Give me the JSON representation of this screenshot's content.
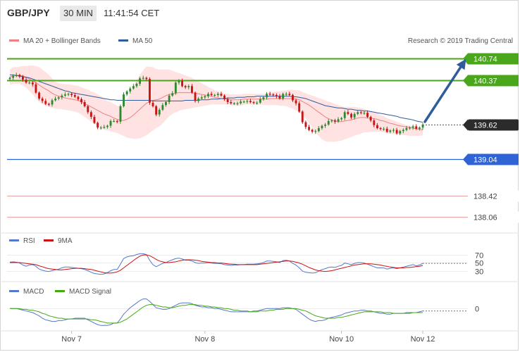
{
  "header": {
    "symbol": "GBP/JPY",
    "timeframe": "30 MIN",
    "time": "11:41:54 CET"
  },
  "legend": {
    "bollinger": "MA 20 + Bollinger Bands",
    "ma50": "MA 50",
    "credit": "Research © 2019 Trading Central",
    "rsi": "RSI",
    "rsi_ma": "9MA",
    "macd": "MACD",
    "macd_signal": "MACD Signal"
  },
  "colors": {
    "resistance": "#4aa61a",
    "support": "#2f63d6",
    "target_line": "#f0a0a0",
    "price_tag": "#2b2b2b",
    "bb_fill": "#ffd8d8",
    "ma20": "#f08080",
    "ma50": "#2f5c9c",
    "up_candle": "#2f8a2f",
    "down_candle": "#c81414",
    "rsi_line": "#5577cc",
    "rsi_ma_line": "#cc1111",
    "macd_line": "#5577cc",
    "macd_signal_line": "#44aa11",
    "arrow": "#2f5c9c"
  },
  "chart_data": [
    {
      "type": "candlestick",
      "title": "GBP/JPY",
      "x_ticks": [
        "Nov 7",
        "Nov 8",
        "Nov 10",
        "Nov 12"
      ],
      "ylim": [
        137.8,
        140.94
      ],
      "last_price": 139.62,
      "levels": [
        {
          "value": 140.74,
          "label": "140.74",
          "kind": "resistance"
        },
        {
          "value": 140.37,
          "label": "140.37",
          "kind": "resistance"
        },
        {
          "value": 139.62,
          "label": "139.62",
          "kind": "last"
        },
        {
          "value": 139.04,
          "label": "139.04",
          "kind": "support"
        },
        {
          "value": 138.42,
          "label": "138.42",
          "kind": "target"
        },
        {
          "value": 138.06,
          "label": "138.06",
          "kind": "target"
        }
      ],
      "projection": {
        "from": 139.62,
        "to": 140.74
      },
      "close": [
        140.41,
        140.44,
        140.46,
        140.43,
        140.38,
        140.33,
        140.33,
        140.3,
        140.16,
        140.06,
        140.02,
        139.97,
        139.96,
        140.03,
        140.06,
        140.08,
        140.11,
        140.13,
        140.14,
        140.12,
        140.09,
        140.05,
        140.0,
        139.93,
        139.83,
        139.75,
        139.65,
        139.57,
        139.57,
        139.58,
        139.6,
        139.68,
        139.68,
        139.67,
        139.93,
        140.13,
        140.18,
        140.23,
        140.27,
        140.31,
        140.4,
        140.41,
        140.39,
        139.99,
        139.93,
        139.79,
        139.87,
        139.95,
        140.0,
        140.11,
        140.15,
        140.33,
        140.36,
        140.27,
        140.25,
        140.27,
        140.16,
        140.02,
        140.06,
        140.08,
        140.1,
        140.14,
        140.12,
        140.12,
        140.14,
        140.11,
        140.05,
        140.0,
        139.98,
        139.98,
        139.98,
        140.01,
        140.01,
        140.02,
        140.0,
        139.99,
        139.99,
        140.05,
        140.08,
        140.14,
        140.13,
        140.12,
        140.1,
        140.06,
        140.14,
        140.14,
        140.12,
        140.03,
        139.98,
        139.84,
        139.66,
        139.58,
        139.53,
        139.5,
        139.51,
        139.56,
        139.6,
        139.62,
        139.68,
        139.69,
        139.67,
        139.71,
        139.73,
        139.83,
        139.8,
        139.74,
        139.8,
        139.83,
        139.82,
        139.82,
        139.75,
        139.69,
        139.61,
        139.56,
        139.55,
        139.55,
        139.5,
        139.52,
        139.53,
        139.47,
        139.51,
        139.53,
        139.56,
        139.57,
        139.59,
        139.55,
        139.57,
        139.62
      ],
      "ma20": [
        140.42,
        140.45,
        140.45,
        140.45,
        140.44,
        140.42,
        140.39,
        140.36,
        140.33,
        140.29,
        140.25,
        140.22,
        140.19,
        140.15,
        140.12,
        140.1,
        140.09,
        140.07,
        140.06,
        140.05,
        140.04,
        140.03,
        140.0,
        139.97,
        139.95,
        139.92,
        139.89,
        139.86,
        139.83,
        139.8,
        139.78,
        139.76,
        139.73,
        139.71,
        139.69,
        139.69,
        139.71,
        139.74,
        139.78,
        139.83,
        139.88,
        139.93,
        139.98,
        140.01,
        140.03,
        140.04,
        140.05,
        140.08,
        140.11,
        140.13,
        140.14,
        140.15,
        140.16,
        140.16,
        140.16,
        140.16,
        140.16,
        140.15,
        140.14,
        140.13,
        140.12,
        140.11,
        140.1,
        140.08,
        140.07,
        140.06,
        140.05,
        140.05,
        140.04,
        140.04,
        140.04,
        140.04,
        140.05,
        140.05,
        140.05,
        140.05,
        140.05,
        140.05,
        140.05,
        140.05,
        140.06,
        140.06,
        140.06,
        140.06,
        140.06,
        140.06,
        140.06,
        140.06,
        140.05,
        140.04,
        140.01,
        139.98,
        139.95,
        139.91,
        139.87,
        139.83,
        139.79,
        139.75,
        139.72,
        139.7,
        139.68,
        139.67,
        139.67,
        139.68,
        139.69,
        139.7,
        139.72,
        139.73,
        139.74,
        139.74,
        139.73,
        139.73,
        139.72,
        139.71,
        139.69,
        139.68,
        139.66,
        139.64,
        139.63,
        139.61,
        139.6,
        139.59,
        139.58,
        139.57,
        139.56,
        139.55,
        139.54,
        139.53
      ],
      "ma50": [
        140.46,
        140.46,
        140.45,
        140.44,
        140.43,
        140.42,
        140.41,
        140.39,
        140.37,
        140.35,
        140.33,
        140.31,
        140.29,
        140.27,
        140.25,
        140.23,
        140.21,
        140.19,
        140.18,
        140.16,
        140.15,
        140.14,
        140.13,
        140.12,
        140.11,
        140.1,
        140.09,
        140.08,
        140.07,
        140.06,
        140.05,
        140.04,
        140.04,
        140.03,
        140.03,
        140.03,
        140.03,
        140.03,
        140.03,
        140.03,
        140.03,
        140.03,
        140.03,
        140.03,
        140.02,
        140.02,
        140.02,
        140.02,
        140.02,
        140.02,
        140.02,
        140.02,
        140.02,
        140.02,
        140.03,
        140.03,
        140.03,
        140.03,
        140.03,
        140.04,
        140.04,
        140.04,
        140.05,
        140.05,
        140.05,
        140.06,
        140.06,
        140.07,
        140.07,
        140.07,
        140.08,
        140.08,
        140.08,
        140.09,
        140.09,
        140.09,
        140.1,
        140.1,
        140.1,
        140.1,
        140.1,
        140.1,
        140.1,
        140.1,
        140.1,
        140.1,
        140.1,
        140.09,
        140.09,
        140.08,
        140.07,
        140.06,
        140.04,
        140.02,
        140.0,
        139.98,
        139.96,
        139.94,
        139.93,
        139.92,
        139.91,
        139.9,
        139.9,
        139.89,
        139.88,
        139.88,
        139.87,
        139.86,
        139.86,
        139.85,
        139.85,
        139.84,
        139.83,
        139.82,
        139.81,
        139.8,
        139.79,
        139.78,
        139.77,
        139.76,
        139.74,
        139.73,
        139.72,
        139.71,
        139.7,
        139.68,
        139.67,
        139.66
      ],
      "bb_upper": [
        140.55,
        140.59,
        140.59,
        140.6,
        140.61,
        140.61,
        140.62,
        140.62,
        140.61,
        140.59,
        140.55,
        140.51,
        140.46,
        140.4,
        140.35,
        140.32,
        140.31,
        140.3,
        140.3,
        140.29,
        140.28,
        140.27,
        140.25,
        140.23,
        140.21,
        140.18,
        140.16,
        140.13,
        140.1,
        140.06,
        140.02,
        140.0,
        139.97,
        139.94,
        139.92,
        139.95,
        140.05,
        140.16,
        140.27,
        140.37,
        140.46,
        140.54,
        140.6,
        140.6,
        140.59,
        140.56,
        140.55,
        140.55,
        140.55,
        140.55,
        140.53,
        140.51,
        140.49,
        140.47,
        140.45,
        140.43,
        140.41,
        140.38,
        140.35,
        140.32,
        140.29,
        140.26,
        140.23,
        140.2,
        140.18,
        140.16,
        140.15,
        140.14,
        140.13,
        140.13,
        140.13,
        140.13,
        140.14,
        140.14,
        140.14,
        140.14,
        140.14,
        140.14,
        140.14,
        140.15,
        140.16,
        140.17,
        140.18,
        140.18,
        140.19,
        140.2,
        140.21,
        140.21,
        140.2,
        140.2,
        140.17,
        140.15,
        140.13,
        140.11,
        140.09,
        140.07,
        140.05,
        140.03,
        140.01,
        139.99,
        139.97,
        139.95,
        139.93,
        139.92,
        139.92,
        139.92,
        139.92,
        139.91,
        139.9,
        139.89,
        139.87,
        139.85,
        139.83,
        139.81,
        139.78,
        139.76,
        139.73,
        139.71,
        139.69,
        139.67,
        139.65,
        139.63,
        139.61,
        139.6,
        139.59,
        139.58,
        139.57,
        139.56
      ],
      "bb_lower": [
        140.29,
        140.31,
        140.31,
        140.31,
        140.28,
        140.24,
        140.19,
        140.13,
        140.07,
        140.0,
        139.97,
        139.94,
        139.92,
        139.9,
        139.89,
        139.88,
        139.88,
        139.87,
        139.86,
        139.85,
        139.84,
        139.82,
        139.79,
        139.75,
        139.71,
        139.67,
        139.63,
        139.6,
        139.56,
        139.53,
        139.52,
        139.51,
        139.49,
        139.48,
        139.45,
        139.43,
        139.4,
        139.39,
        139.38,
        139.38,
        139.39,
        139.41,
        139.44,
        139.48,
        139.52,
        139.56,
        139.59,
        139.64,
        139.7,
        139.76,
        139.8,
        139.83,
        139.85,
        139.87,
        139.88,
        139.89,
        139.9,
        139.91,
        139.92,
        139.93,
        139.94,
        139.95,
        139.96,
        139.96,
        139.96,
        139.96,
        139.96,
        139.96,
        139.95,
        139.94,
        139.94,
        139.94,
        139.95,
        139.96,
        139.96,
        139.96,
        139.96,
        139.96,
        139.95,
        139.95,
        139.95,
        139.95,
        139.95,
        139.94,
        139.94,
        139.93,
        139.91,
        139.89,
        139.86,
        139.83,
        139.78,
        139.72,
        139.65,
        139.57,
        139.49,
        139.43,
        139.37,
        139.34,
        139.33,
        139.33,
        139.33,
        139.34,
        139.35,
        139.37,
        139.39,
        139.41,
        139.43,
        139.45,
        139.47,
        139.49,
        139.49,
        139.5,
        139.5,
        139.5,
        139.5,
        139.49,
        139.48,
        139.47,
        139.46,
        139.46,
        139.45,
        139.44,
        139.44,
        139.43,
        139.43,
        139.43,
        139.43,
        139.44
      ]
    },
    {
      "type": "line",
      "title": "RSI",
      "y_ticks": [
        70,
        50,
        30
      ],
      "ylim": [
        10,
        90
      ],
      "rsi": [
        51,
        52,
        51,
        49,
        44,
        41,
        44,
        45,
        41,
        34,
        31,
        29,
        28,
        30,
        32,
        34,
        37,
        39,
        39,
        38,
        37,
        36,
        35,
        33,
        30,
        26,
        23,
        22,
        21,
        22,
        25,
        30,
        33,
        33,
        46,
        60,
        64,
        66,
        67,
        70,
        72,
        72,
        70,
        56,
        45,
        40,
        44,
        48,
        50,
        54,
        57,
        60,
        61,
        59,
        56,
        56,
        54,
        50,
        48,
        49,
        49,
        50,
        49,
        48,
        48,
        47,
        45,
        44,
        43,
        44,
        44,
        45,
        45,
        46,
        46,
        46,
        47,
        48,
        50,
        54,
        54,
        53,
        52,
        50,
        55,
        56,
        54,
        48,
        44,
        37,
        29,
        26,
        25,
        24,
        25,
        29,
        33,
        35,
        38,
        39,
        38,
        41,
        43,
        49,
        47,
        45,
        48,
        50,
        50,
        49,
        46,
        43,
        40,
        37,
        37,
        37,
        34,
        36,
        37,
        35,
        37,
        39,
        41,
        43,
        45,
        42,
        44,
        48
      ],
      "rsi_ma": [
        50,
        50,
        50,
        50,
        49,
        48,
        47,
        46,
        45,
        42,
        40,
        37,
        35,
        34,
        33,
        32,
        32,
        33,
        34,
        35,
        36,
        36,
        36,
        35,
        34,
        33,
        31,
        29,
        27,
        25,
        24,
        24,
        25,
        27,
        31,
        37,
        43,
        49,
        55,
        61,
        66,
        69,
        69,
        67,
        63,
        58,
        54,
        52,
        50,
        50,
        51,
        52,
        54,
        56,
        57,
        57,
        57,
        56,
        55,
        53,
        52,
        51,
        50,
        50,
        49,
        49,
        48,
        47,
        46,
        46,
        45,
        45,
        45,
        45,
        45,
        45,
        45,
        46,
        47,
        48,
        49,
        50,
        51,
        52,
        53,
        54,
        54,
        53,
        51,
        49,
        46,
        42,
        38,
        35,
        32,
        30,
        29,
        28,
        29,
        30,
        32,
        34,
        36,
        38,
        40,
        42,
        44,
        45,
        46,
        47,
        47,
        47,
        46,
        45,
        44,
        42,
        41,
        39,
        38,
        37,
        37,
        37,
        38,
        38,
        39,
        40,
        41,
        43
      ]
    },
    {
      "type": "line",
      "title": "MACD",
      "y_ticks": [
        0
      ],
      "ylim": [
        -0.26,
        0.16
      ],
      "macd": [
        0.0,
        0.0,
        0.0,
        -0.01,
        -0.02,
        -0.03,
        -0.04,
        -0.05,
        -0.07,
        -0.09,
        -0.12,
        -0.14,
        -0.15,
        -0.16,
        -0.16,
        -0.15,
        -0.15,
        -0.14,
        -0.13,
        -0.13,
        -0.12,
        -0.12,
        -0.12,
        -0.12,
        -0.14,
        -0.16,
        -0.18,
        -0.2,
        -0.21,
        -0.21,
        -0.21,
        -0.2,
        -0.18,
        -0.18,
        -0.13,
        -0.07,
        -0.03,
        0.01,
        0.04,
        0.07,
        0.1,
        0.12,
        0.12,
        0.09,
        0.05,
        0.01,
        -0.0,
        -0.01,
        -0.01,
        0.0,
        0.02,
        0.04,
        0.06,
        0.07,
        0.07,
        0.07,
        0.06,
        0.04,
        0.03,
        0.02,
        0.02,
        0.01,
        0.01,
        0.0,
        -0.0,
        -0.01,
        -0.02,
        -0.03,
        -0.04,
        -0.04,
        -0.04,
        -0.04,
        -0.04,
        -0.04,
        -0.04,
        -0.03,
        -0.03,
        -0.02,
        -0.01,
        -0.0,
        0.0,
        0.0,
        0.0,
        -0.0,
        0.01,
        0.01,
        0.01,
        0.0,
        -0.01,
        -0.04,
        -0.07,
        -0.1,
        -0.13,
        -0.15,
        -0.16,
        -0.15,
        -0.15,
        -0.14,
        -0.12,
        -0.11,
        -0.1,
        -0.09,
        -0.08,
        -0.06,
        -0.05,
        -0.04,
        -0.03,
        -0.03,
        -0.02,
        -0.02,
        -0.03,
        -0.03,
        -0.04,
        -0.05,
        -0.06,
        -0.06,
        -0.07,
        -0.07,
        -0.06,
        -0.06,
        -0.06,
        -0.06,
        -0.05,
        -0.05,
        -0.05,
        -0.05,
        -0.04,
        -0.03
      ],
      "macd_signal": [
        0.0,
        0.0,
        0.0,
        -0.0,
        -0.01,
        -0.01,
        -0.02,
        -0.02,
        -0.03,
        -0.04,
        -0.06,
        -0.07,
        -0.09,
        -0.1,
        -0.11,
        -0.12,
        -0.12,
        -0.13,
        -0.13,
        -0.13,
        -0.13,
        -0.13,
        -0.13,
        -0.13,
        -0.13,
        -0.14,
        -0.14,
        -0.15,
        -0.16,
        -0.17,
        -0.18,
        -0.18,
        -0.18,
        -0.18,
        -0.17,
        -0.15,
        -0.13,
        -0.1,
        -0.07,
        -0.04,
        -0.01,
        0.02,
        0.04,
        0.05,
        0.05,
        0.04,
        0.03,
        0.02,
        0.02,
        0.01,
        0.01,
        0.02,
        0.03,
        0.04,
        0.04,
        0.05,
        0.05,
        0.05,
        0.04,
        0.04,
        0.03,
        0.03,
        0.02,
        0.02,
        0.01,
        0.01,
        0.0,
        -0.0,
        -0.01,
        -0.02,
        -0.02,
        -0.03,
        -0.03,
        -0.03,
        -0.04,
        -0.04,
        -0.04,
        -0.03,
        -0.03,
        -0.03,
        -0.02,
        -0.02,
        -0.01,
        -0.01,
        -0.01,
        -0.0,
        0.0,
        0.0,
        0.0,
        -0.01,
        -0.02,
        -0.03,
        -0.05,
        -0.07,
        -0.09,
        -0.1,
        -0.11,
        -0.12,
        -0.12,
        -0.12,
        -0.12,
        -0.11,
        -0.11,
        -0.1,
        -0.09,
        -0.08,
        -0.07,
        -0.06,
        -0.05,
        -0.04,
        -0.04,
        -0.04,
        -0.04,
        -0.04,
        -0.04,
        -0.05,
        -0.05,
        -0.05,
        -0.06,
        -0.06,
        -0.06,
        -0.06,
        -0.06,
        -0.06,
        -0.05,
        -0.05,
        -0.05,
        -0.05
      ]
    }
  ]
}
